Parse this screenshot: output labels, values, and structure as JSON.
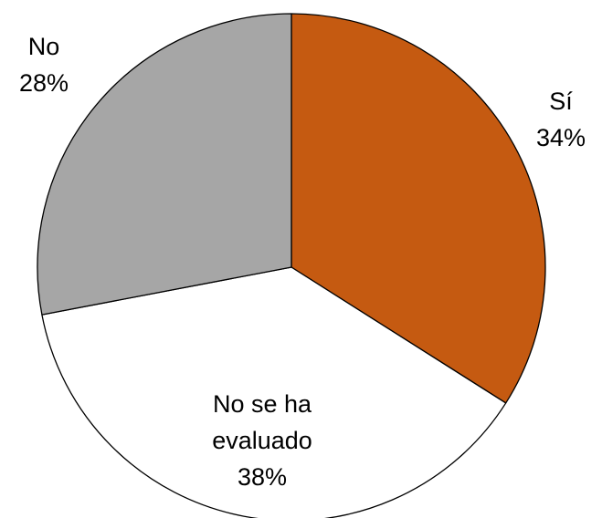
{
  "chart_data": {
    "type": "pie",
    "start_angle_deg": 0,
    "direction": "clockwise",
    "slices": [
      {
        "label": "Sí",
        "value": 34,
        "value_label": "34%",
        "color": "#C55A11"
      },
      {
        "label": "No se ha evaluado",
        "value": 38,
        "value_label": "38%",
        "color": "#FFFFFF"
      },
      {
        "label": "No",
        "value": 28,
        "value_label": "28%",
        "color": "#A6A6A6"
      }
    ],
    "legend": "none",
    "slice_border_color": "#000000"
  }
}
